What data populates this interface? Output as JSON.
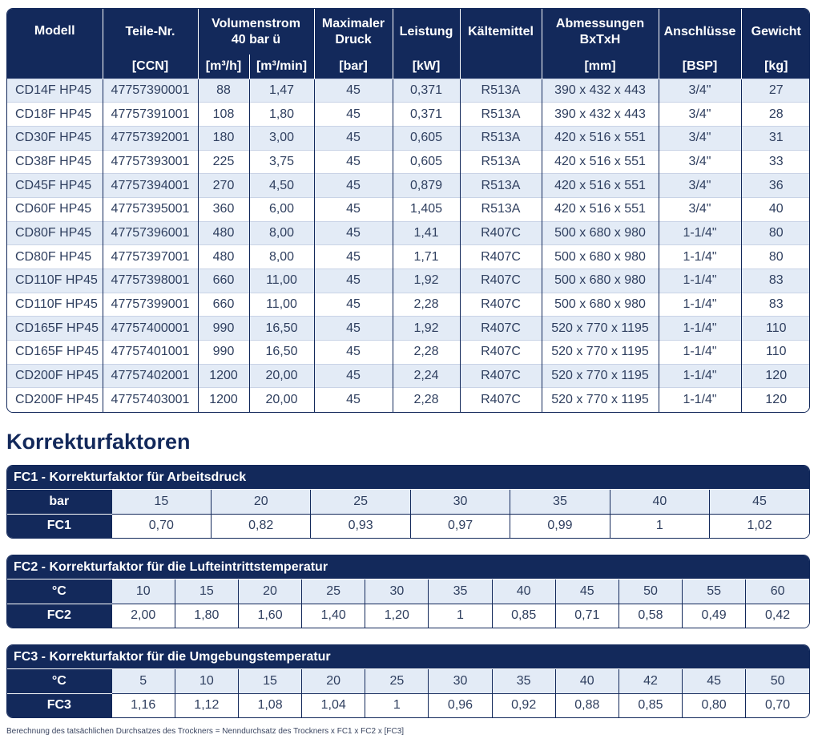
{
  "main_table": {
    "headers_top": [
      "Modell",
      "Teile-Nr.",
      "Volumenstrom\n40 bar ü",
      "Maximaler\nDruck",
      "Leistung",
      "Kältemittel",
      "Abmessungen\nBxTxH",
      "Anschlüsse",
      "Gewicht"
    ],
    "headers_units": [
      "[CCN]",
      "[m³/h]",
      "[m³/min]",
      "[bar]",
      "[kW]",
      "[mm]",
      "[BSP]",
      "[kg]"
    ],
    "rows": [
      [
        "CD14F HP45",
        "47757390001",
        "88",
        "1,47",
        "45",
        "0,371",
        "R513A",
        "390 x 432 x 443",
        "3/4\"",
        "27"
      ],
      [
        "CD18F HP45",
        "47757391001",
        "108",
        "1,80",
        "45",
        "0,371",
        "R513A",
        "390 x 432 x 443",
        "3/4\"",
        "28"
      ],
      [
        "CD30F HP45",
        "47757392001",
        "180",
        "3,00",
        "45",
        "0,605",
        "R513A",
        "420 x 516 x 551",
        "3/4\"",
        "31"
      ],
      [
        "CD38F HP45",
        "47757393001",
        "225",
        "3,75",
        "45",
        "0,605",
        "R513A",
        "420 x 516 x 551",
        "3/4\"",
        "33"
      ],
      [
        "CD45F HP45",
        "47757394001",
        "270",
        "4,50",
        "45",
        "0,879",
        "R513A",
        "420 x 516 x 551",
        "3/4\"",
        "36"
      ],
      [
        "CD60F HP45",
        "47757395001",
        "360",
        "6,00",
        "45",
        "1,405",
        "R513A",
        "420 x 516 x 551",
        "3/4\"",
        "40"
      ],
      [
        "CD80F HP45",
        "47757396001",
        "480",
        "8,00",
        "45",
        "1,41",
        "R407C",
        "500 x 680 x 980",
        "1-1/4\"",
        "80"
      ],
      [
        "CD80F HP45",
        "47757397001",
        "480",
        "8,00",
        "45",
        "1,71",
        "R407C",
        "500 x 680 x 980",
        "1-1/4\"",
        "80"
      ],
      [
        "CD110F HP45",
        "47757398001",
        "660",
        "11,00",
        "45",
        "1,92",
        "R407C",
        "500 x 680 x 980",
        "1-1/4\"",
        "83"
      ],
      [
        "CD110F HP45",
        "47757399001",
        "660",
        "11,00",
        "45",
        "2,28",
        "R407C",
        "500 x 680 x 980",
        "1-1/4\"",
        "83"
      ],
      [
        "CD165F HP45",
        "47757400001",
        "990",
        "16,50",
        "45",
        "1,92",
        "R407C",
        "520 x 770 x 1195",
        "1-1/4\"",
        "110"
      ],
      [
        "CD165F HP45",
        "47757401001",
        "990",
        "16,50",
        "45",
        "2,28",
        "R407C",
        "520 x 770 x 1195",
        "1-1/4\"",
        "110"
      ],
      [
        "CD200F HP45",
        "47757402001",
        "1200",
        "20,00",
        "45",
        "2,24",
        "R407C",
        "520 x 770 x 1195",
        "1-1/4\"",
        "120"
      ],
      [
        "CD200F HP45",
        "47757403001",
        "1200",
        "20,00",
        "45",
        "2,28",
        "R407C",
        "520 x 770 x 1195",
        "1-1/4\"",
        "120"
      ]
    ]
  },
  "korrektur_title": "Korrekturfaktoren",
  "fc1": {
    "title": "FC1 - Korrekturfaktor für Arbeitsdruck",
    "label1": "bar",
    "label2": "FC1",
    "values1": [
      "15",
      "20",
      "25",
      "30",
      "35",
      "40",
      "45"
    ],
    "values2": [
      "0,70",
      "0,82",
      "0,93",
      "0,97",
      "0,99",
      "1",
      "1,02"
    ]
  },
  "fc2": {
    "title": "FC2 - Korrekturfaktor für die Lufteintrittstemperatur",
    "label1": "°C",
    "label2": "FC2",
    "values1": [
      "10",
      "15",
      "20",
      "25",
      "30",
      "35",
      "40",
      "45",
      "50",
      "55",
      "60"
    ],
    "values2": [
      "2,00",
      "1,80",
      "1,60",
      "1,40",
      "1,20",
      "1",
      "0,85",
      "0,71",
      "0,58",
      "0,49",
      "0,42"
    ]
  },
  "fc3": {
    "title": "FC3 - Korrekturfaktor für die Umgebungstemperatur",
    "label1": "°C",
    "label2": "FC3",
    "values1": [
      "5",
      "10",
      "15",
      "20",
      "25",
      "30",
      "35",
      "40",
      "42",
      "45",
      "50"
    ],
    "values2": [
      "1,16",
      "1,12",
      "1,08",
      "1,04",
      "1",
      "0,96",
      "0,92",
      "0,88",
      "0,85",
      "0,80",
      "0,70"
    ]
  },
  "footnote": "Berechnung des tatsächlichen Durchsatzes des Trockners = Nenndurchsatz des Trockners x FC1 x FC2 x [FC3]",
  "colors": {
    "navy": "#13295b",
    "row_stripe": "#e3ebf6",
    "text": "#2f3f5f"
  }
}
